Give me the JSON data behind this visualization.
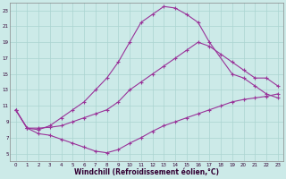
{
  "xlabel": "Windchill (Refroidissement éolien,°C)",
  "bg_color": "#cceae8",
  "grid_color": "#aad4d0",
  "line_color": "#993399",
  "xlim": [
    -0.5,
    23.5
  ],
  "ylim": [
    4,
    24
  ],
  "xticks": [
    0,
    1,
    2,
    3,
    4,
    5,
    6,
    7,
    8,
    9,
    10,
    11,
    12,
    13,
    14,
    15,
    16,
    17,
    18,
    19,
    20,
    21,
    22,
    23
  ],
  "yticks": [
    5,
    7,
    9,
    11,
    13,
    15,
    17,
    19,
    21,
    23
  ],
  "line1_x": [
    0,
    1,
    2,
    3,
    4,
    5,
    6,
    7,
    8,
    9,
    10,
    11,
    12,
    13,
    14,
    15,
    16,
    17,
    19,
    20,
    21,
    22,
    23
  ],
  "line1_y": [
    10.5,
    8.2,
    8.0,
    8.5,
    9.5,
    10.5,
    11.5,
    13.0,
    14.5,
    16.5,
    19.0,
    21.5,
    22.5,
    23.5,
    23.3,
    22.5,
    21.5,
    19.0,
    15.0,
    14.5,
    13.5,
    12.5,
    12.0
  ],
  "line2_x": [
    0,
    1,
    2,
    3,
    4,
    5,
    6,
    7,
    8,
    9,
    10,
    11,
    12,
    13,
    14,
    15,
    16,
    17,
    18,
    19,
    20,
    21,
    22,
    23
  ],
  "line2_y": [
    10.5,
    8.2,
    8.2,
    8.3,
    8.5,
    9.0,
    9.5,
    10.0,
    10.5,
    11.5,
    13.0,
    14.0,
    15.0,
    16.0,
    17.0,
    18.0,
    19.0,
    18.5,
    17.5,
    16.5,
    15.5,
    14.5,
    14.5,
    13.5
  ],
  "line3_x": [
    0,
    1,
    2,
    3,
    4,
    5,
    6,
    7,
    8,
    9,
    10,
    11,
    12,
    13,
    14,
    15,
    16,
    17,
    18,
    19,
    20,
    21,
    22,
    23
  ],
  "line3_y": [
    10.5,
    8.2,
    7.5,
    7.3,
    6.8,
    6.3,
    5.8,
    5.3,
    5.1,
    5.5,
    6.3,
    7.0,
    7.8,
    8.5,
    9.0,
    9.5,
    10.0,
    10.5,
    11.0,
    11.5,
    11.8,
    12.0,
    12.2,
    12.5
  ]
}
